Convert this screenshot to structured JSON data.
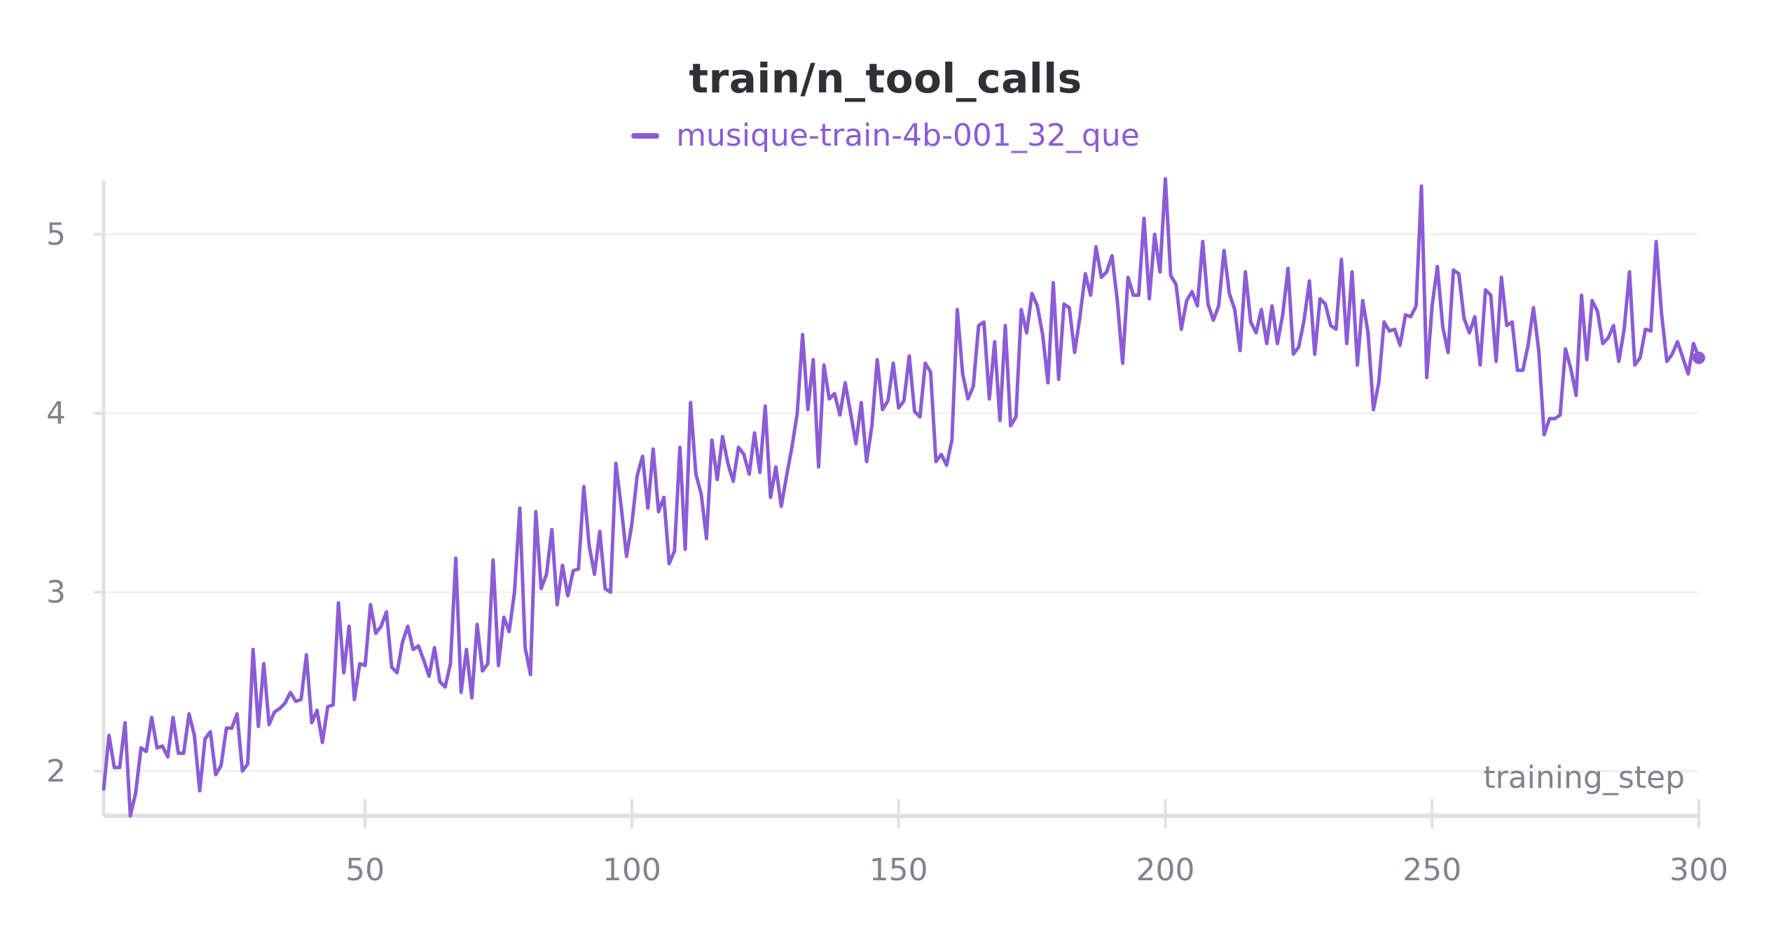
{
  "colors": {
    "series": "#8b5cd6",
    "axis": "#e0e0e0",
    "grid": "#ececec",
    "text": "#80838d",
    "title": "#2f3037"
  },
  "chart_data": {
    "type": "line",
    "title": "train/n_tool_calls",
    "xlabel": "training_step",
    "ylabel": "",
    "xlim": [
      1,
      300
    ],
    "ylim": [
      1.75,
      5.3
    ],
    "xticks": [
      50,
      100,
      150,
      200,
      250,
      300
    ],
    "yticks": [
      2,
      3,
      4,
      5
    ],
    "grid": true,
    "legend_position": "top-center",
    "series": [
      {
        "name": "musique-train-4b-001_32_que",
        "x": [
          1,
          2,
          3,
          4,
          5,
          6,
          7,
          8,
          9,
          10,
          11,
          12,
          13,
          14,
          15,
          16,
          17,
          18,
          19,
          20,
          21,
          22,
          23,
          24,
          25,
          26,
          27,
          28,
          29,
          30,
          31,
          32,
          33,
          34,
          35,
          36,
          37,
          38,
          39,
          40,
          41,
          42,
          43,
          44,
          45,
          46,
          47,
          48,
          49,
          50,
          51,
          52,
          53,
          54,
          55,
          56,
          57,
          58,
          59,
          60,
          61,
          62,
          63,
          64,
          65,
          66,
          67,
          68,
          69,
          70,
          71,
          72,
          73,
          74,
          75,
          76,
          77,
          78,
          79,
          80,
          81,
          82,
          83,
          84,
          85,
          86,
          87,
          88,
          89,
          90,
          91,
          92,
          93,
          94,
          95,
          96,
          97,
          98,
          99,
          100,
          101,
          102,
          103,
          104,
          105,
          106,
          107,
          108,
          109,
          110,
          111,
          112,
          113,
          114,
          115,
          116,
          117,
          118,
          119,
          120,
          121,
          122,
          123,
          124,
          125,
          126,
          127,
          128,
          129,
          130,
          131,
          132,
          133,
          134,
          135,
          136,
          137,
          138,
          139,
          140,
          141,
          142,
          143,
          144,
          145,
          146,
          147,
          148,
          149,
          150,
          151,
          152,
          153,
          154,
          155,
          156,
          157,
          158,
          159,
          160,
          161,
          162,
          163,
          164,
          165,
          166,
          167,
          168,
          169,
          170,
          171,
          172,
          173,
          174,
          175,
          176,
          177,
          178,
          179,
          180,
          181,
          182,
          183,
          184,
          185,
          186,
          187,
          188,
          189,
          190,
          191,
          192,
          193,
          194,
          195,
          196,
          197,
          198,
          199,
          200,
          201,
          202,
          203,
          204,
          205,
          206,
          207,
          208,
          209,
          210,
          211,
          212,
          213,
          214,
          215,
          216,
          217,
          218,
          219,
          220,
          221,
          222,
          223,
          224,
          225,
          226,
          227,
          228,
          229,
          230,
          231,
          232,
          233,
          234,
          235,
          236,
          237,
          238,
          239,
          240,
          241,
          242,
          243,
          244,
          245,
          246,
          247,
          248,
          249,
          250,
          251,
          252,
          253,
          254,
          255,
          256,
          257,
          258,
          259,
          260,
          261,
          262,
          263,
          264,
          265,
          266,
          267,
          268,
          269,
          270,
          271,
          272,
          273,
          274,
          275,
          276,
          277,
          278,
          279,
          280,
          281,
          282,
          283,
          284,
          285,
          286,
          287,
          288,
          289,
          290,
          291,
          292,
          293,
          294,
          295,
          296,
          297,
          298,
          299,
          300
        ],
        "y": [
          1.9,
          2.2,
          2.02,
          2.02,
          2.27,
          1.75,
          1.88,
          2.13,
          2.11,
          2.3,
          2.13,
          2.14,
          2.08,
          2.3,
          2.1,
          2.1,
          2.32,
          2.2,
          1.89,
          2.18,
          2.22,
          1.98,
          2.03,
          2.24,
          2.24,
          2.32,
          2.0,
          2.04,
          2.68,
          2.25,
          2.6,
          2.26,
          2.33,
          2.35,
          2.38,
          2.44,
          2.39,
          2.4,
          2.65,
          2.27,
          2.34,
          2.16,
          2.36,
          2.37,
          2.94,
          2.55,
          2.81,
          2.4,
          2.6,
          2.59,
          2.93,
          2.77,
          2.81,
          2.89,
          2.58,
          2.55,
          2.72,
          2.81,
          2.68,
          2.7,
          2.62,
          2.53,
          2.69,
          2.5,
          2.47,
          2.6,
          3.19,
          2.44,
          2.68,
          2.41,
          2.82,
          2.56,
          2.6,
          3.18,
          2.59,
          2.86,
          2.78,
          3.0,
          3.47,
          2.69,
          2.54,
          3.45,
          3.02,
          3.1,
          3.35,
          2.93,
          3.15,
          2.98,
          3.12,
          3.13,
          3.59,
          3.26,
          3.1,
          3.34,
          3.02,
          3.0,
          3.72,
          3.48,
          3.2,
          3.38,
          3.65,
          3.76,
          3.47,
          3.8,
          3.45,
          3.53,
          3.16,
          3.23,
          3.81,
          3.24,
          4.06,
          3.66,
          3.55,
          3.3,
          3.85,
          3.63,
          3.87,
          3.72,
          3.62,
          3.81,
          3.77,
          3.66,
          3.89,
          3.67,
          4.04,
          3.53,
          3.7,
          3.48,
          3.65,
          3.81,
          4.0,
          4.44,
          4.02,
          4.3,
          3.7,
          4.27,
          4.08,
          4.11,
          3.99,
          4.17,
          4.0,
          3.83,
          4.06,
          3.73,
          3.93,
          4.3,
          4.02,
          4.07,
          4.28,
          4.03,
          4.07,
          4.32,
          4.01,
          3.98,
          4.28,
          4.23,
          3.73,
          3.77,
          3.71,
          3.85,
          4.58,
          4.22,
          4.08,
          4.15,
          4.49,
          4.51,
          4.08,
          4.4,
          3.96,
          4.49,
          3.93,
          3.98,
          4.58,
          4.45,
          4.67,
          4.6,
          4.44,
          4.17,
          4.73,
          4.19,
          4.61,
          4.59,
          4.34,
          4.54,
          4.78,
          4.66,
          4.93,
          4.76,
          4.79,
          4.88,
          4.63,
          4.28,
          4.76,
          4.66,
          4.66,
          5.09,
          4.64,
          5.0,
          4.79,
          5.31,
          4.77,
          4.72,
          4.47,
          4.63,
          4.68,
          4.6,
          4.96,
          4.61,
          4.52,
          4.6,
          4.91,
          4.67,
          4.58,
          4.35,
          4.79,
          4.51,
          4.45,
          4.58,
          4.39,
          4.6,
          4.39,
          4.55,
          4.81,
          4.33,
          4.37,
          4.52,
          4.74,
          4.33,
          4.64,
          4.61,
          4.49,
          4.47,
          4.86,
          4.39,
          4.79,
          4.27,
          4.63,
          4.45,
          4.02,
          4.17,
          4.51,
          4.46,
          4.47,
          4.38,
          4.55,
          4.54,
          4.6,
          5.27,
          4.2,
          4.6,
          4.82,
          4.48,
          4.34,
          4.8,
          4.78,
          4.53,
          4.45,
          4.54,
          4.27,
          4.69,
          4.66,
          4.29,
          4.76,
          4.49,
          4.51,
          4.24,
          4.24,
          4.38,
          4.59,
          4.35,
          3.88,
          3.97,
          3.97,
          3.99,
          4.36,
          4.25,
          4.1,
          4.66,
          4.3,
          4.63,
          4.57,
          4.39,
          4.42,
          4.49,
          4.29,
          4.47,
          4.79,
          4.27,
          4.31,
          4.47,
          4.46,
          4.96,
          4.56,
          4.29,
          4.33,
          4.4,
          4.31,
          4.22,
          4.39,
          4.31
        ]
      }
    ]
  }
}
